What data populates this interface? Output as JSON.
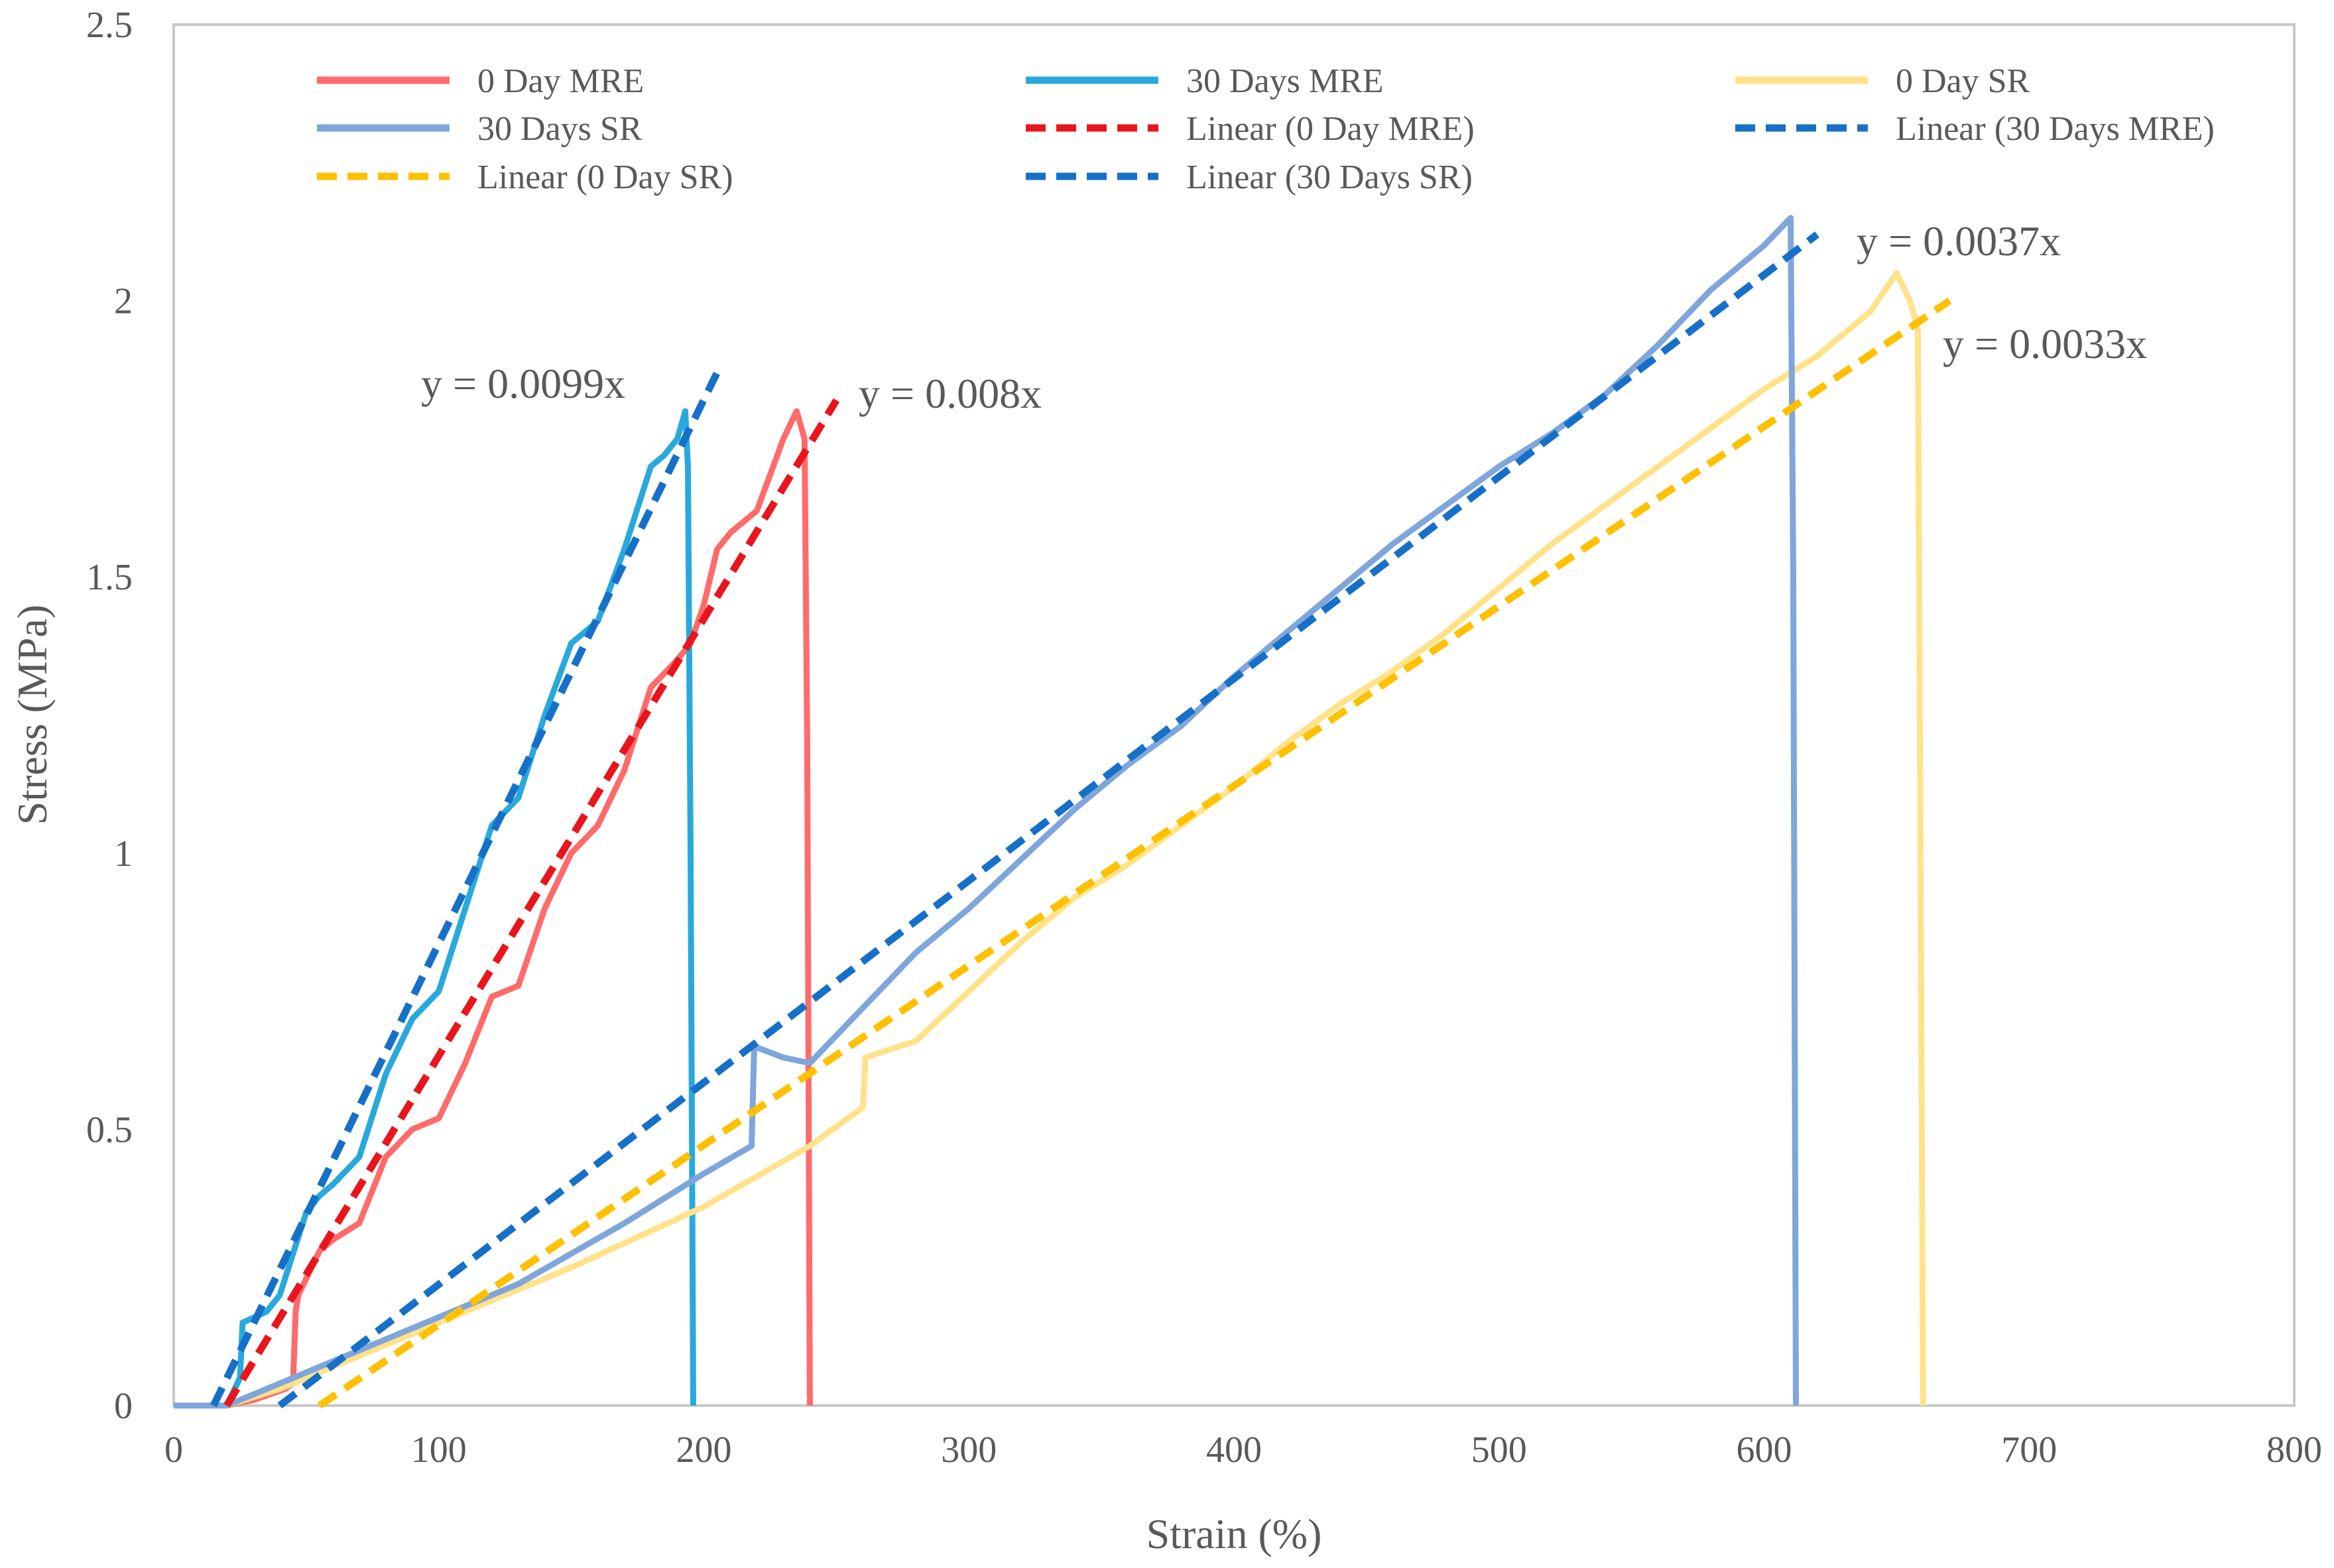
{
  "chart_data": {
    "type": "line",
    "xlabel": "Strain (%)",
    "ylabel": "Stress (MPa)",
    "xlim": [
      0,
      800
    ],
    "ylim": [
      0,
      2.5
    ],
    "xticks": [
      0,
      100,
      200,
      300,
      400,
      500,
      600,
      700,
      800
    ],
    "yticks": [
      0,
      0.5,
      1,
      1.5,
      2,
      2.5
    ],
    "ytick_labels": [
      "0",
      "0.5",
      "1",
      "1.5",
      "2",
      "2.5"
    ],
    "grid": false,
    "legend_position": "top",
    "series": [
      {
        "name": "0 Day MRE",
        "color": "#FF6B6B",
        "style": "solid",
        "points": [
          [
            0,
            0
          ],
          [
            20,
            0
          ],
          [
            30,
            0.01
          ],
          [
            42,
            0.03
          ],
          [
            45,
            0.04
          ],
          [
            46,
            0.17
          ],
          [
            47,
            0.2
          ],
          [
            55,
            0.28
          ],
          [
            60,
            0.3
          ],
          [
            70,
            0.33
          ],
          [
            80,
            0.45
          ],
          [
            90,
            0.5
          ],
          [
            100,
            0.52
          ],
          [
            110,
            0.62
          ],
          [
            120,
            0.74
          ],
          [
            130,
            0.76
          ],
          [
            140,
            0.9
          ],
          [
            150,
            1.0
          ],
          [
            160,
            1.05
          ],
          [
            170,
            1.15
          ],
          [
            180,
            1.3
          ],
          [
            190,
            1.35
          ],
          [
            195,
            1.38
          ],
          [
            200,
            1.45
          ],
          [
            205,
            1.55
          ],
          [
            210,
            1.58
          ],
          [
            220,
            1.62
          ],
          [
            230,
            1.75
          ],
          [
            235,
            1.8
          ],
          [
            238,
            1.75
          ],
          [
            239,
            1.2
          ],
          [
            240,
            0
          ]
        ]
      },
      {
        "name": "30 Days MRE",
        "color": "#29A9DB",
        "style": "solid",
        "points": [
          [
            0,
            0
          ],
          [
            20,
            0
          ],
          [
            25,
            0.05
          ],
          [
            26,
            0.15
          ],
          [
            35,
            0.17
          ],
          [
            40,
            0.2
          ],
          [
            50,
            0.35
          ],
          [
            55,
            0.38
          ],
          [
            60,
            0.4
          ],
          [
            70,
            0.45
          ],
          [
            80,
            0.6
          ],
          [
            90,
            0.7
          ],
          [
            100,
            0.75
          ],
          [
            110,
            0.9
          ],
          [
            120,
            1.05
          ],
          [
            130,
            1.1
          ],
          [
            140,
            1.25
          ],
          [
            150,
            1.38
          ],
          [
            160,
            1.42
          ],
          [
            170,
            1.55
          ],
          [
            180,
            1.7
          ],
          [
            185,
            1.72
          ],
          [
            190,
            1.75
          ],
          [
            193,
            1.8
          ],
          [
            194,
            1.7
          ],
          [
            195,
            1.0
          ],
          [
            196,
            0
          ]
        ]
      },
      {
        "name": "0 Day SR",
        "color": "#FFE28A",
        "style": "solid",
        "points": [
          [
            0,
            0
          ],
          [
            20,
            0
          ],
          [
            40,
            0.03
          ],
          [
            60,
            0.07
          ],
          [
            100,
            0.15
          ],
          [
            150,
            0.25
          ],
          [
            200,
            0.36
          ],
          [
            240,
            0.47
          ],
          [
            260,
            0.54
          ],
          [
            261,
            0.63
          ],
          [
            280,
            0.66
          ],
          [
            300,
            0.75
          ],
          [
            320,
            0.84
          ],
          [
            340,
            0.92
          ],
          [
            360,
            0.98
          ],
          [
            380,
            1.05
          ],
          [
            400,
            1.12
          ],
          [
            420,
            1.2
          ],
          [
            440,
            1.27
          ],
          [
            460,
            1.33
          ],
          [
            480,
            1.4
          ],
          [
            500,
            1.48
          ],
          [
            520,
            1.56
          ],
          [
            540,
            1.63
          ],
          [
            560,
            1.7
          ],
          [
            580,
            1.77
          ],
          [
            600,
            1.84
          ],
          [
            620,
            1.9
          ],
          [
            640,
            1.98
          ],
          [
            650,
            2.05
          ],
          [
            655,
            2.0
          ],
          [
            658,
            1.95
          ],
          [
            659,
            1.0
          ],
          [
            660,
            0
          ]
        ]
      },
      {
        "name": "30 Days SR",
        "color": "#7FA6DB",
        "style": "solid",
        "points": [
          [
            0,
            0
          ],
          [
            20,
            0
          ],
          [
            40,
            0.04
          ],
          [
            60,
            0.08
          ],
          [
            90,
            0.14
          ],
          [
            130,
            0.22
          ],
          [
            170,
            0.33
          ],
          [
            200,
            0.42
          ],
          [
            218,
            0.47
          ],
          [
            219,
            0.65
          ],
          [
            230,
            0.63
          ],
          [
            240,
            0.62
          ],
          [
            260,
            0.72
          ],
          [
            280,
            0.82
          ],
          [
            300,
            0.9
          ],
          [
            320,
            0.99
          ],
          [
            340,
            1.08
          ],
          [
            360,
            1.16
          ],
          [
            380,
            1.23
          ],
          [
            400,
            1.32
          ],
          [
            420,
            1.4
          ],
          [
            440,
            1.48
          ],
          [
            460,
            1.56
          ],
          [
            480,
            1.63
          ],
          [
            500,
            1.7
          ],
          [
            520,
            1.76
          ],
          [
            540,
            1.83
          ],
          [
            560,
            1.92
          ],
          [
            580,
            2.02
          ],
          [
            600,
            2.1
          ],
          [
            610,
            2.15
          ],
          [
            611,
            1.5
          ],
          [
            612,
            0
          ]
        ]
      },
      {
        "name": "Linear (0 Day MRE)",
        "color": "#E8161C",
        "style": "dashed",
        "points": [
          [
            20,
            0
          ],
          [
            250,
            1.82
          ]
        ]
      },
      {
        "name": "Linear (30 Days MRE)",
        "color": "#1670C8",
        "style": "dashed",
        "points": [
          [
            15,
            0
          ],
          [
            205,
            1.87
          ]
        ]
      },
      {
        "name": "Linear (0 Day SR)",
        "color": "#FFC000",
        "style": "dashed",
        "points": [
          [
            55,
            0
          ],
          [
            670,
            2.0
          ]
        ]
      },
      {
        "name": "Linear (30 Days SR)",
        "color": "#1670C8",
        "style": "dashed",
        "points": [
          [
            40,
            0
          ],
          [
            620,
            2.12
          ]
        ]
      }
    ],
    "annotations": [
      {
        "text": "y = 0.0099x",
        "color": "#29A9DB"
      },
      {
        "text": "y = 0.008x",
        "color": "#E8161C"
      },
      {
        "text": "y = 0.0037x",
        "color": "#1670C8"
      },
      {
        "text": "y = 0.0033x",
        "color": "#FFC000"
      }
    ]
  }
}
